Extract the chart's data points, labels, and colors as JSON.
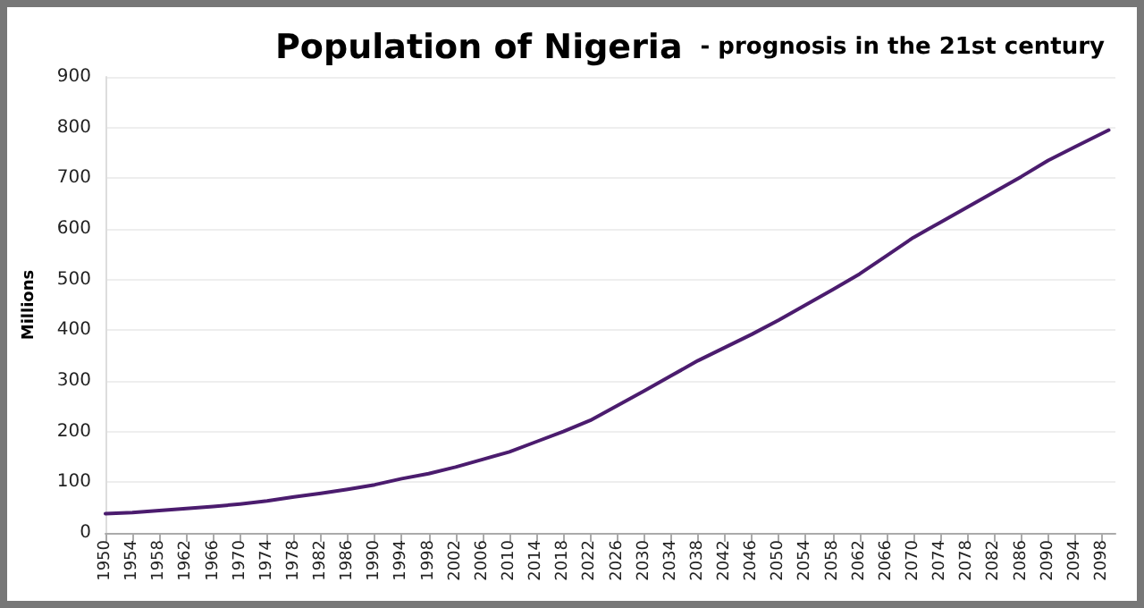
{
  "chart_data": {
    "type": "line",
    "title": "Population of Nigeria",
    "subtitle": "- prognosis in the 21st century",
    "ylabel": "Millions",
    "x": [
      1950,
      1954,
      1958,
      1962,
      1966,
      1970,
      1974,
      1978,
      1982,
      1986,
      1990,
      1994,
      1998,
      2002,
      2006,
      2010,
      2014,
      2018,
      2022,
      2026,
      2030,
      2034,
      2038,
      2042,
      2046,
      2050,
      2054,
      2058,
      2062,
      2066,
      2070,
      2074,
      2078,
      2082,
      2086,
      2090,
      2094,
      2099
    ],
    "series": [
      {
        "color": "#4b1c6e",
        "values": [
          38,
          40,
          44,
          48,
          52,
          57,
          63,
          71,
          78,
          86,
          95,
          107,
          117,
          130,
          145,
          160,
          180,
          200,
          222,
          251,
          280,
          310,
          340,
          366,
          392,
          420,
          450,
          480,
          511,
          547,
          583,
          613,
          643,
          673,
          703,
          735,
          762,
          795
        ]
      }
    ],
    "xlim": [
      1950,
      2100
    ],
    "xticks": [
      1950,
      1954,
      1958,
      1962,
      1966,
      1970,
      1974,
      1978,
      1982,
      1986,
      1990,
      1994,
      1998,
      2002,
      2006,
      2010,
      2014,
      2018,
      2022,
      2026,
      2030,
      2034,
      2038,
      2042,
      2046,
      2050,
      2054,
      2058,
      2062,
      2066,
      2070,
      2074,
      2078,
      2082,
      2086,
      2090,
      2094,
      2098
    ],
    "ylim": [
      0,
      900
    ],
    "yticks": [
      0,
      100,
      200,
      300,
      400,
      500,
      600,
      700,
      800,
      900
    ],
    "grid": "y",
    "marker": "none",
    "line_style": "solid"
  }
}
